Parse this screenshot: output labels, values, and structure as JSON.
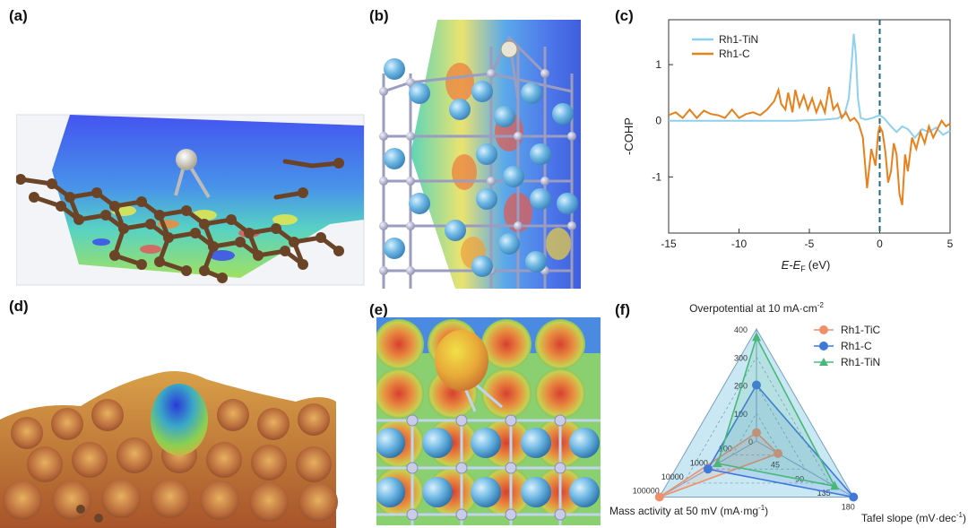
{
  "panels": {
    "a": {
      "label": "(a)"
    },
    "b": {
      "label": "(b)"
    },
    "c": {
      "label": "(c)"
    },
    "d": {
      "label": "(d)"
    },
    "e": {
      "label": "(e)"
    },
    "f": {
      "label": "(f)"
    }
  },
  "chart_data": [
    {
      "type": "line",
      "panel": "(c)",
      "xlabel": "E-E",
      "xlabel_sub": "F",
      "xlabel_unit": "(eV)",
      "ylabel": "-COHP",
      "xlim": [
        -15,
        5
      ],
      "ylim": [
        -2,
        1.8
      ],
      "xticks": [
        -15,
        -10,
        -5,
        0,
        5
      ],
      "yticks": [
        1,
        0,
        -1
      ],
      "fermi_line": 0,
      "series": [
        {
          "name": "Rh1-TiN",
          "color": "#8fd0ee",
          "x": [
            -15,
            -10,
            -6,
            -4,
            -3,
            -2.5,
            -2.2,
            -2.0,
            -1.85,
            -1.7,
            -1.55,
            -1.35,
            -1.0,
            -0.5,
            0,
            0.3,
            0.8,
            1.2,
            1.6,
            2.0,
            2.5,
            3.0,
            3.5,
            4.0,
            4.5,
            5
          ],
          "y": [
            0,
            0,
            0,
            0.02,
            0.04,
            0.12,
            0.4,
            1.0,
            1.55,
            1.2,
            0.4,
            0.05,
            0.02,
            0.05,
            0.1,
            0.05,
            -0.1,
            -0.2,
            -0.1,
            -0.15,
            -0.3,
            -0.15,
            -0.2,
            -0.12,
            -0.25,
            -0.18
          ]
        },
        {
          "name": "Rh1-C",
          "color": "#e8801c",
          "x": [
            -15,
            -14.5,
            -14,
            -13.5,
            -13,
            -12.5,
            -12,
            -11.5,
            -11,
            -10.5,
            -10,
            -9.5,
            -9,
            -8.5,
            -8,
            -7.5,
            -7.2,
            -7,
            -6.7,
            -6.5,
            -6.2,
            -6,
            -5.7,
            -5.4,
            -5.1,
            -4.8,
            -4.5,
            -4.2,
            -3.9,
            -3.6,
            -3.3,
            -3,
            -2.7,
            -2.4,
            -2.1,
            -1.8,
            -1.5,
            -1.2,
            -0.9,
            -0.6,
            -0.3,
            -0.1,
            0,
            0.2,
            0.4,
            0.6,
            0.8,
            1.0,
            1.2,
            1.4,
            1.6,
            1.8,
            2.0,
            2.3,
            2.6,
            2.9,
            3.2,
            3.5,
            3.8,
            4.1,
            4.4,
            4.7,
            5
          ],
          "y": [
            0.1,
            0.15,
            0.05,
            0.2,
            0.05,
            0.18,
            0.12,
            0.1,
            0.05,
            0.2,
            0.05,
            0.12,
            0.15,
            0.1,
            0.2,
            0.35,
            0.55,
            0.3,
            0.2,
            0.5,
            0.15,
            0.55,
            0.25,
            0.45,
            0.2,
            0.4,
            0.15,
            0.35,
            0.15,
            0.6,
            0.2,
            0.3,
            0.05,
            0.15,
            0,
            0.05,
            -0.05,
            -0.3,
            -1.2,
            -0.5,
            -0.8,
            -0.2,
            -0.1,
            -0.2,
            -0.55,
            -1.1,
            -0.9,
            -0.4,
            -0.6,
            -1.3,
            -1.5,
            -0.6,
            -0.9,
            -0.3,
            -0.5,
            -0.2,
            -0.4,
            -0.1,
            -0.3,
            -0.15,
            0,
            -0.1,
            -0.05
          ]
        }
      ]
    },
    {
      "type": "radar",
      "panel": "(f)",
      "axes": [
        {
          "label": "Overpotential at 10 mA·cm",
          "sup": "-2",
          "ticks": [
            "100",
            "200",
            "300",
            "400"
          ]
        },
        {
          "label": "Tafel slope (mV·dec",
          "sup": "-1",
          "label_end": ")",
          "ticks": [
            "45",
            "90",
            "135",
            "180"
          ]
        },
        {
          "label": "Mass activity at 50 mV (mA·mg",
          "sup": "-1",
          "label_end": ")",
          "ticks": [
            "100",
            "1000",
            "10000",
            "100000"
          ]
        }
      ],
      "center_tick": "0",
      "series": [
        {
          "name": "Rh1-TiC",
          "color": "#f0906a",
          "values": [
            30,
            40,
            100000
          ]
        },
        {
          "name": "Rh1-C",
          "color": "#3f78d8",
          "values": [
            200,
            180,
            1000
          ]
        },
        {
          "name": "Rh1-TiN",
          "color": "#48b87a",
          "values": [
            370,
            145,
            400
          ]
        }
      ]
    }
  ],
  "colors": {
    "grid": "#7a9fc0",
    "radar_fill": "#c9e8f4"
  }
}
